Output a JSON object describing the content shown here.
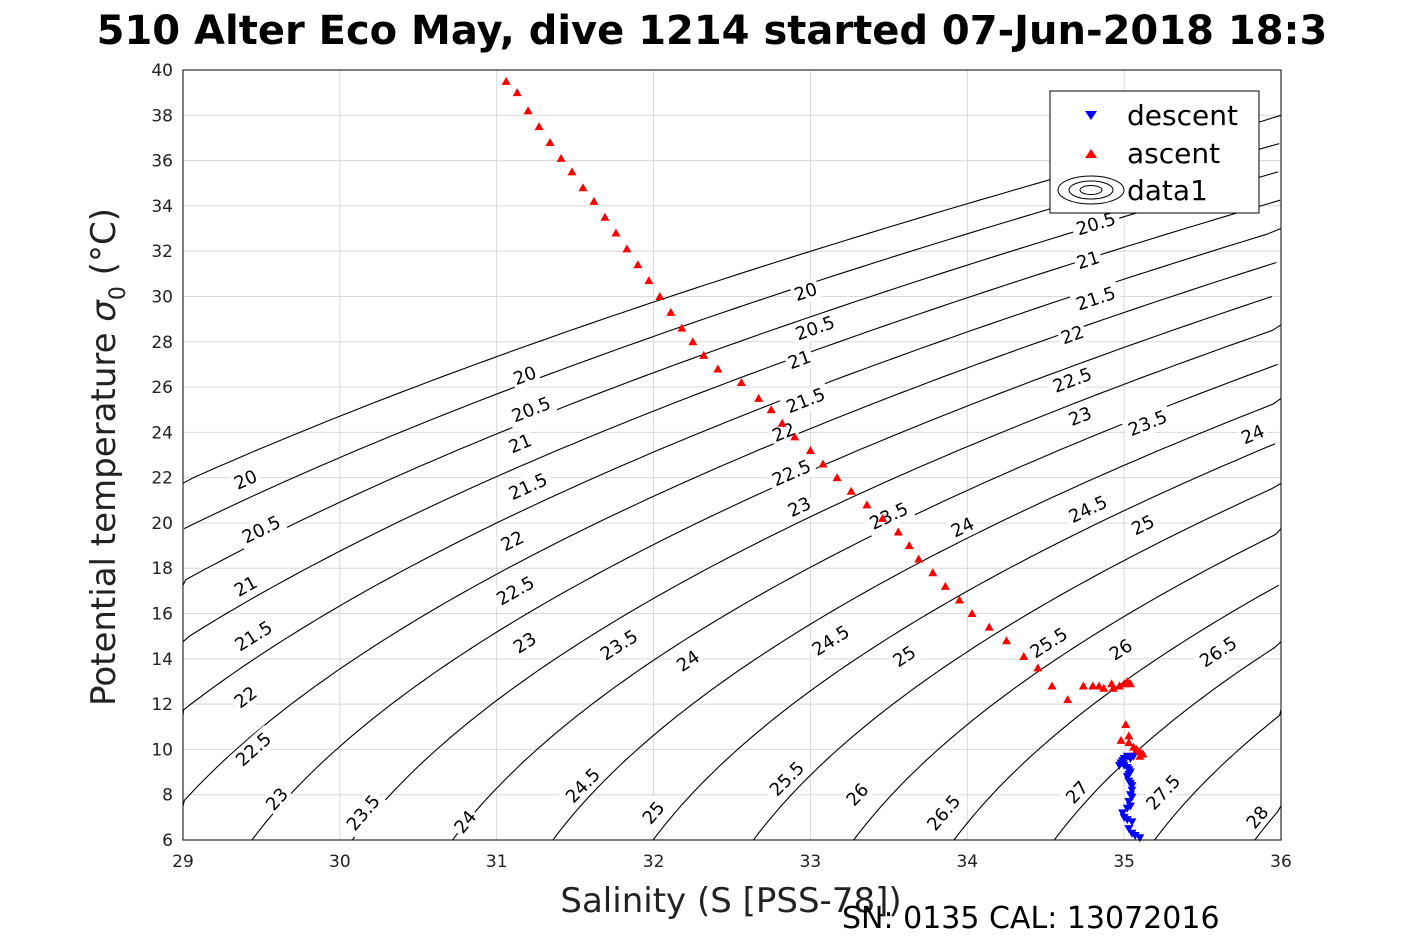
{
  "title": "510 Alter Eco May, dive 1214 started 07-Jun-2018 18:3",
  "footer": "SN: 0135  CAL: 13072016",
  "chart_data": {
    "type": "scatter",
    "title": "510 Alter Eco May, dive 1214 started 07-Jun-2018 18:3",
    "xlabel": "Salinity (S [PSS-78])",
    "ylabel": "Potential temperature σ₀ (°C)",
    "ylabel_main": "Potential temperature ",
    "ylabel_sigma": "σ",
    "ylabel_sub": "0",
    "ylabel_unit": " (°C)",
    "xlim": [
      29,
      36
    ],
    "ylim": [
      6,
      40
    ],
    "xticks": [
      29,
      30,
      31,
      32,
      33,
      34,
      35,
      36
    ],
    "yticks": [
      6,
      8,
      10,
      12,
      14,
      16,
      18,
      20,
      22,
      24,
      26,
      28,
      30,
      32,
      34,
      36,
      38,
      40
    ],
    "grid": true,
    "legend_position": "top-right",
    "legend": [
      "descent",
      "ascent",
      "data1"
    ],
    "colors": {
      "descent": "#0000ff",
      "ascent": "#ff0000",
      "contour": "#000000"
    },
    "series": [
      {
        "name": "descent",
        "marker": "triangle-down",
        "x": [
          35.1,
          35.07,
          35.05,
          35.03,
          35.05,
          35.02,
          35.0,
          34.99,
          35.02,
          35.04,
          35.03,
          35.05,
          35.04,
          35.05,
          35.05,
          35.04,
          35.03,
          35.02,
          35.03,
          35.04,
          35.03,
          35.02,
          35.0,
          34.98,
          34.97,
          34.99,
          35.0,
          35.02,
          35.04,
          35.06
        ],
        "y": [
          6.1,
          6.2,
          6.3,
          6.5,
          6.8,
          6.9,
          7.0,
          7.2,
          7.4,
          7.5,
          7.7,
          7.9,
          8.0,
          8.2,
          8.4,
          8.5,
          8.6,
          8.8,
          8.9,
          9.0,
          9.1,
          9.2,
          9.3,
          9.4,
          9.3,
          9.5,
          9.6,
          9.7,
          9.6,
          9.7
        ]
      },
      {
        "name": "ascent",
        "marker": "triangle-up",
        "x": [
          31.06,
          31.13,
          31.2,
          31.27,
          31.34,
          31.41,
          31.48,
          31.55,
          31.62,
          31.69,
          31.76,
          31.83,
          31.9,
          31.97,
          32.04,
          32.11,
          32.18,
          32.25,
          32.32,
          32.41,
          32.56,
          32.67,
          32.75,
          32.82,
          32.9,
          33.0,
          33.08,
          33.17,
          33.26,
          33.36,
          33.46,
          33.56,
          33.63,
          33.69,
          33.78,
          33.86,
          33.95,
          34.03,
          34.14,
          34.25,
          34.36,
          34.45,
          34.54,
          34.64,
          34.74,
          34.84,
          34.92,
          34.8,
          34.87,
          34.93,
          34.97,
          35.0,
          35.02,
          35.04,
          35.01,
          35.03,
          34.98,
          35.03,
          35.06,
          35.08,
          35.1,
          35.12,
          35.1
        ],
        "y": [
          39.5,
          39.0,
          38.2,
          37.5,
          36.8,
          36.1,
          35.5,
          34.8,
          34.2,
          33.5,
          32.8,
          32.1,
          31.4,
          30.7,
          30.0,
          29.3,
          28.6,
          28.0,
          27.4,
          26.8,
          26.2,
          25.5,
          25.0,
          24.4,
          23.8,
          23.2,
          22.6,
          22.0,
          21.4,
          20.8,
          20.2,
          19.6,
          19.0,
          18.4,
          17.8,
          17.2,
          16.6,
          16.0,
          15.4,
          14.8,
          14.1,
          13.6,
          12.8,
          12.2,
          12.8,
          12.8,
          12.9,
          12.8,
          12.7,
          12.7,
          12.8,
          12.9,
          13.0,
          12.9,
          11.1,
          10.6,
          10.4,
          10.3,
          10.1,
          10.0,
          9.9,
          9.8,
          9.7
        ]
      },
      {
        "name": "data1",
        "type": "contour",
        "levels": [
          20,
          20.5,
          21,
          21.5,
          22,
          22.5,
          23,
          23.5,
          24,
          24.5,
          25,
          25.5,
          26,
          26.5,
          27,
          27.5,
          28
        ]
      }
    ],
    "contour_labels": [
      {
        "text": "20",
        "x": 29.4,
        "y": 21.9
      },
      {
        "text": "20.5",
        "x": 29.5,
        "y": 19.7
      },
      {
        "text": "21",
        "x": 29.4,
        "y": 17.2
      },
      {
        "text": "21.5",
        "x": 29.45,
        "y": 15.0
      },
      {
        "text": "22",
        "x": 29.4,
        "y": 12.3
      },
      {
        "text": "22.5",
        "x": 29.45,
        "y": 10.0
      },
      {
        "text": "23",
        "x": 29.6,
        "y": 7.8
      },
      {
        "text": "23.5",
        "x": 30.15,
        "y": 7.2
      },
      {
        "text": "24",
        "x": 30.8,
        "y": 6.8
      },
      {
        "text": "24.5",
        "x": 31.55,
        "y": 8.4
      },
      {
        "text": "25",
        "x": 32.0,
        "y": 7.2
      },
      {
        "text": "25.5",
        "x": 32.85,
        "y": 8.7
      },
      {
        "text": "26",
        "x": 33.3,
        "y": 8.0
      },
      {
        "text": "26.5",
        "x": 33.85,
        "y": 7.2
      },
      {
        "text": "27",
        "x": 34.7,
        "y": 8.1
      },
      {
        "text": "27.5",
        "x": 35.25,
        "y": 8.1
      },
      {
        "text": "28",
        "x": 35.85,
        "y": 7.0
      },
      {
        "text": "20",
        "x": 31.18,
        "y": 26.5
      },
      {
        "text": "20.5",
        "x": 31.22,
        "y": 25.0
      },
      {
        "text": "21",
        "x": 31.15,
        "y": 23.5
      },
      {
        "text": "21.5",
        "x": 31.2,
        "y": 21.6
      },
      {
        "text": "22",
        "x": 31.1,
        "y": 19.2
      },
      {
        "text": "22.5",
        "x": 31.12,
        "y": 17.0
      },
      {
        "text": "23",
        "x": 31.18,
        "y": 14.7
      },
      {
        "text": "23.5",
        "x": 31.78,
        "y": 14.6
      },
      {
        "text": "24",
        "x": 32.22,
        "y": 13.9
      },
      {
        "text": "24.5",
        "x": 33.13,
        "y": 14.8
      },
      {
        "text": "25",
        "x": 33.6,
        "y": 14.1
      },
      {
        "text": "25.5",
        "x": 34.52,
        "y": 14.7
      },
      {
        "text": "26",
        "x": 34.98,
        "y": 14.4
      },
      {
        "text": "26.5",
        "x": 35.6,
        "y": 14.3
      },
      {
        "text": "20",
        "x": 32.97,
        "y": 30.2
      },
      {
        "text": "20.5",
        "x": 33.03,
        "y": 28.6
      },
      {
        "text": "21",
        "x": 32.93,
        "y": 27.2
      },
      {
        "text": "21.5",
        "x": 32.97,
        "y": 25.4
      },
      {
        "text": "22",
        "x": 32.83,
        "y": 24.0
      },
      {
        "text": "22.5",
        "x": 32.88,
        "y": 22.2
      },
      {
        "text": "23",
        "x": 32.93,
        "y": 20.7
      },
      {
        "text": "23.5",
        "x": 33.5,
        "y": 20.3
      },
      {
        "text": "24",
        "x": 33.97,
        "y": 19.8
      },
      {
        "text": "24.5",
        "x": 34.77,
        "y": 20.6
      },
      {
        "text": "25",
        "x": 35.12,
        "y": 19.9
      },
      {
        "text": "20.5",
        "x": 34.82,
        "y": 33.2
      },
      {
        "text": "21",
        "x": 34.77,
        "y": 31.6
      },
      {
        "text": "21.5",
        "x": 34.82,
        "y": 29.9
      },
      {
        "text": "22",
        "x": 34.67,
        "y": 28.3
      },
      {
        "text": "22.5",
        "x": 34.67,
        "y": 26.3
      },
      {
        "text": "23",
        "x": 34.72,
        "y": 24.7
      },
      {
        "text": "23.5",
        "x": 35.15,
        "y": 24.4
      },
      {
        "text": "24",
        "x": 35.82,
        "y": 23.9
      }
    ]
  }
}
